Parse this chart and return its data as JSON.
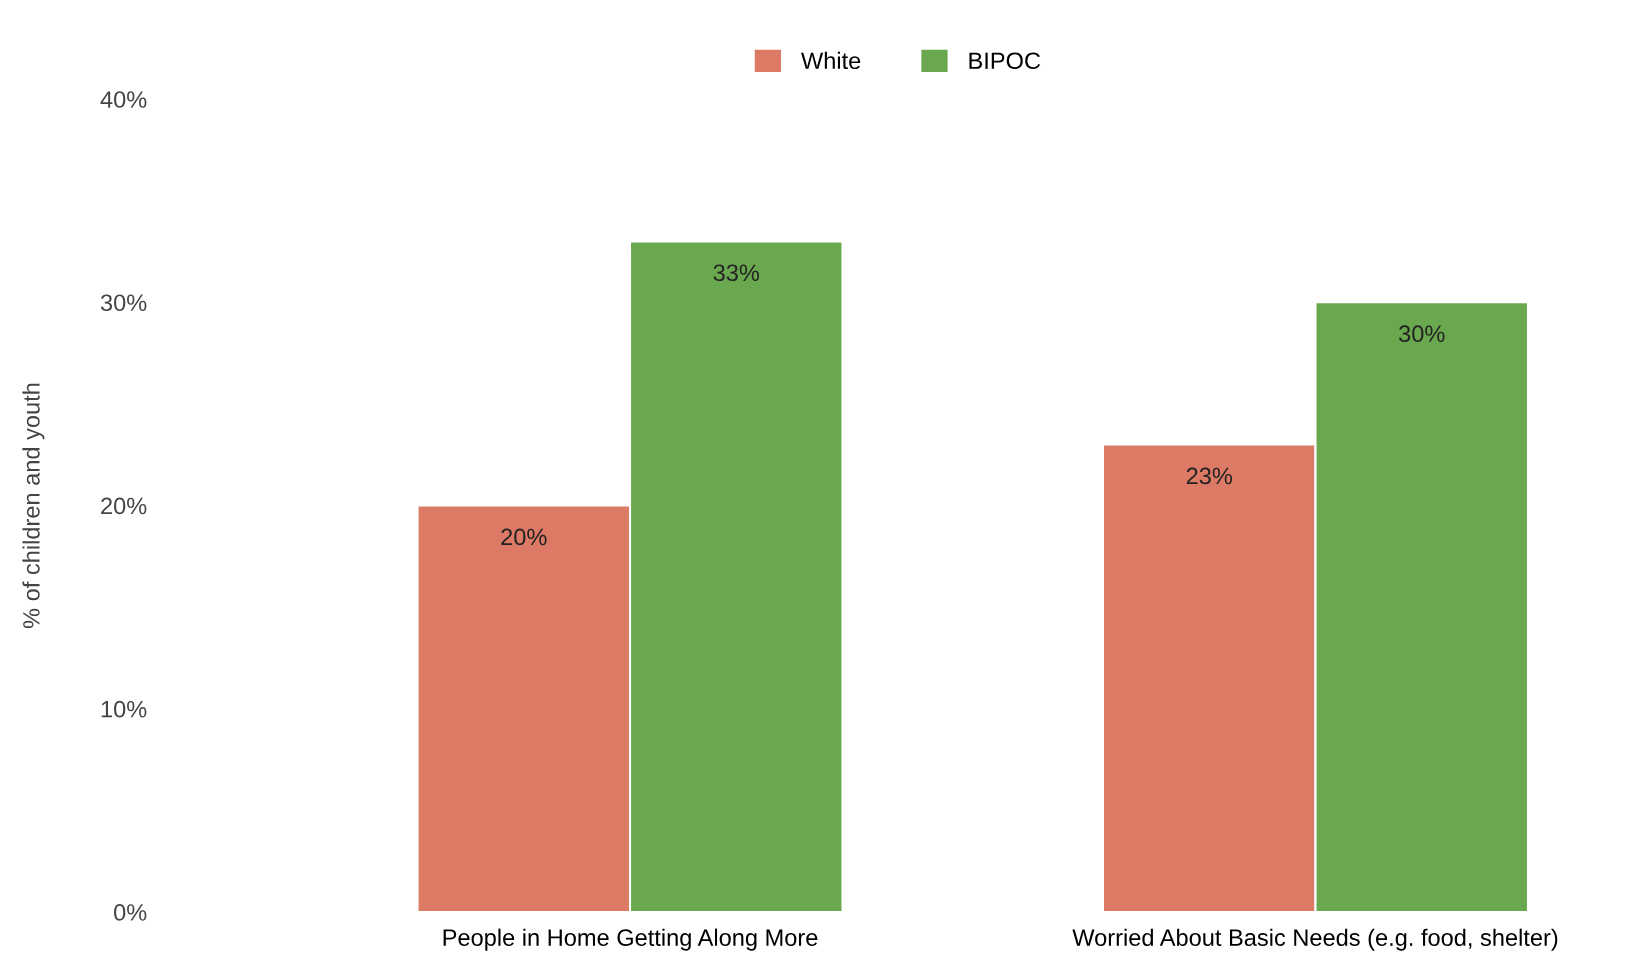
{
  "chart_data": {
    "type": "bar",
    "ylabel": "% of children and youth",
    "categories": [
      "People in Home Getting Along More",
      "Worried About Basic Needs (e.g. food, shelter)"
    ],
    "series": [
      {
        "name": "White",
        "color": "#dc7a66",
        "values": [
          20,
          23
        ],
        "value_labels": [
          "20%",
          "23%"
        ]
      },
      {
        "name": "BIPOC",
        "color": "#6aa84f",
        "values": [
          33,
          30
        ],
        "value_labels": [
          "33%",
          "30%"
        ]
      }
    ],
    "ylim": [
      0,
      40
    ],
    "yticks": [
      {
        "value": 0,
        "label": "0%"
      },
      {
        "value": 10,
        "label": "10%"
      },
      {
        "value": 20,
        "label": "20%"
      },
      {
        "value": 30,
        "label": "30%"
      },
      {
        "value": 40,
        "label": "40%"
      }
    ],
    "grid": false,
    "legend": "top"
  }
}
